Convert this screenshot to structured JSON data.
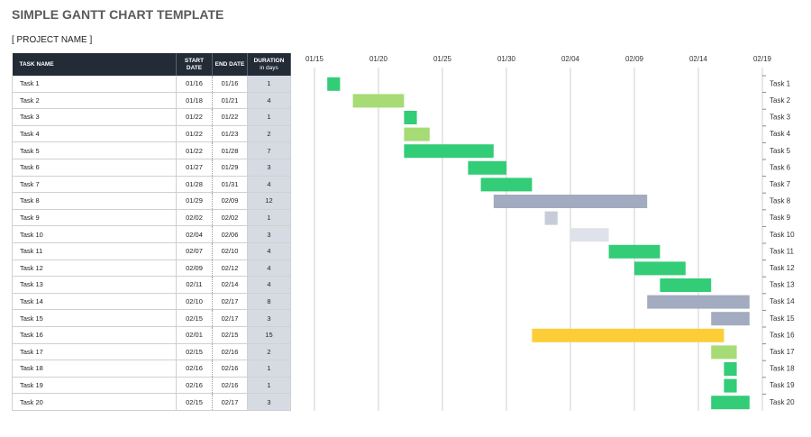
{
  "header": {
    "title": "SIMPLE GANTT CHART TEMPLATE",
    "project": "[ PROJECT NAME ]"
  },
  "table": {
    "columns": [
      "TASK NAME",
      "START DATE",
      "END DATE",
      "DURATION"
    ],
    "duration_unit": "in days",
    "rows": [
      [
        "Task 1",
        "01/16",
        "01/16",
        1
      ],
      [
        "Task 2",
        "01/18",
        "01/21",
        4
      ],
      [
        "Task 3",
        "01/22",
        "01/22",
        1
      ],
      [
        "Task 4",
        "01/22",
        "01/23",
        2
      ],
      [
        "Task 5",
        "01/22",
        "01/28",
        7
      ],
      [
        "Task 6",
        "01/27",
        "01/29",
        3
      ],
      [
        "Task 7",
        "01/28",
        "01/31",
        4
      ],
      [
        "Task 8",
        "01/29",
        "02/09",
        12
      ],
      [
        "Task 9",
        "02/02",
        "02/02",
        1
      ],
      [
        "Task 10",
        "02/04",
        "02/06",
        3
      ],
      [
        "Task 11",
        "02/07",
        "02/10",
        4
      ],
      [
        "Task 12",
        "02/09",
        "02/12",
        4
      ],
      [
        "Task 13",
        "02/11",
        "02/14",
        4
      ],
      [
        "Task 14",
        "02/10",
        "02/17",
        8
      ],
      [
        "Task 15",
        "02/15",
        "02/17",
        3
      ],
      [
        "Task 16",
        "02/01",
        "02/15",
        15
      ],
      [
        "Task 17",
        "02/15",
        "02/16",
        2
      ],
      [
        "Task 18",
        "02/16",
        "02/16",
        1
      ],
      [
        "Task 19",
        "02/16",
        "02/16",
        1
      ],
      [
        "Task 20",
        "02/15",
        "02/17",
        3
      ]
    ]
  },
  "chart_data": {
    "type": "gantt",
    "xlim": [
      "01/15",
      "02/19"
    ],
    "xticks": [
      "01/15",
      "01/20",
      "01/25",
      "01/30",
      "02/04",
      "02/09",
      "02/14",
      "02/19"
    ],
    "grid": true,
    "colors": [
      "#33cc77",
      "#a6db76",
      "#33cc77",
      "#a6db76",
      "#33cc77",
      "#33cc77",
      "#33cc77",
      "#a2abbf",
      "#c6ccd8",
      "#dfe2ea",
      "#33cc77",
      "#33cc77",
      "#33cc77",
      "#a2abbf",
      "#a2abbf",
      "#fccd37",
      "#a6db76",
      "#33cc77",
      "#33cc77",
      "#33cc77"
    ]
  }
}
